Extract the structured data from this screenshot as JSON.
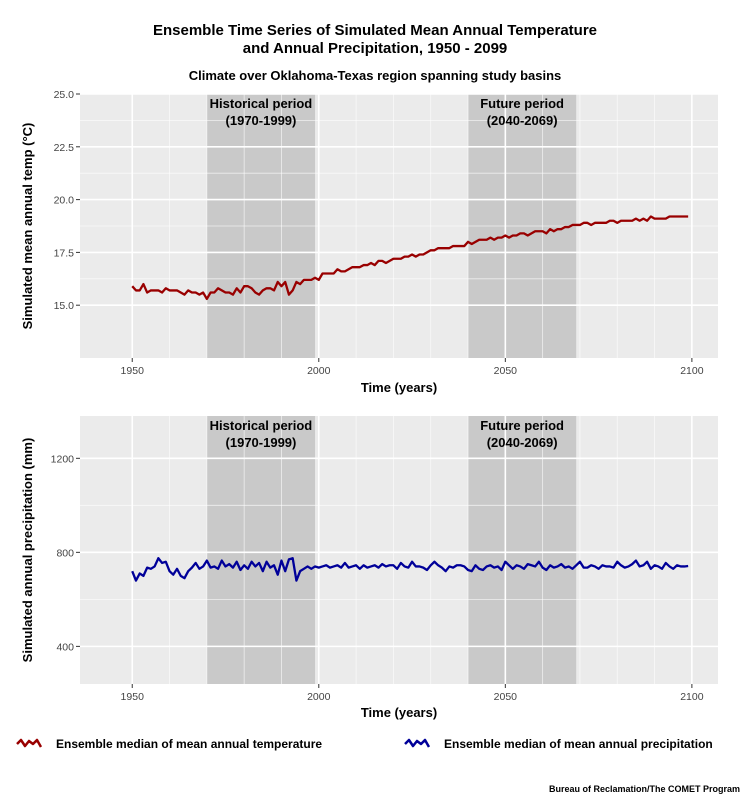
{
  "title_line1": "Ensemble Time Series of Simulated Mean Annual Temperature",
  "title_line2": "and Annual Precipitation, 1950 - 2099",
  "subtitle": "Climate over Oklahoma-Texas region spanning study basins",
  "credit": "Bureau of Reclamation/The COMET Program",
  "legend": {
    "temperature": "Ensemble median of mean annual temperature",
    "precipitation": "Ensemble median of mean annual precipitation"
  },
  "colors": {
    "temperature": "#990000",
    "precipitation": "#000099",
    "panel_bg": "#ebebeb",
    "period_shade": "#c9c9c9",
    "grid": "#ffffff"
  },
  "chart_data": [
    {
      "type": "line",
      "xlabel": "Time (years)",
      "ylabel": "Simulated mean annual temp (°C)",
      "xlim": [
        1936,
        2107
      ],
      "ylim": [
        12.5,
        25.0
      ],
      "xticks": [
        1950,
        2000,
        2050,
        2100
      ],
      "yticks": [
        15.0,
        17.5,
        20.0,
        22.5,
        25.0
      ],
      "ytick_labels": [
        "15.0",
        "17.5",
        "20.0",
        "22.5",
        "25.0"
      ],
      "grid": true,
      "shaded_periods": [
        {
          "start": 1970,
          "end": 1999,
          "label_line1": "Historical period",
          "label_line2": "(1970-1999)"
        },
        {
          "start": 2040,
          "end": 2069,
          "label_line1": "Future period",
          "label_line2": "(2040-2069)"
        }
      ],
      "x_start": 1950,
      "series": [
        {
          "values": [
            15.9,
            15.7,
            15.7,
            16.0,
            15.6,
            15.7,
            15.7,
            15.7,
            15.6,
            15.8,
            15.7,
            15.7,
            15.7,
            15.6,
            15.5,
            15.7,
            15.6,
            15.6,
            15.5,
            15.6,
            15.3,
            15.6,
            15.6,
            15.8,
            15.7,
            15.6,
            15.6,
            15.5,
            15.8,
            15.6,
            15.9,
            15.9,
            15.8,
            15.6,
            15.5,
            15.7,
            15.8,
            15.8,
            15.7,
            16.1,
            15.9,
            16.1,
            15.5,
            15.7,
            16.1,
            16.0,
            16.2,
            16.2,
            16.2,
            16.3,
            16.2,
            16.5,
            16.5,
            16.5,
            16.5,
            16.7,
            16.6,
            16.6,
            16.7,
            16.8,
            16.8,
            16.8,
            16.9,
            16.9,
            17.0,
            16.9,
            17.1,
            17.1,
            17.0,
            17.1,
            17.2,
            17.2,
            17.2,
            17.3,
            17.3,
            17.4,
            17.3,
            17.4,
            17.4,
            17.5,
            17.6,
            17.6,
            17.7,
            17.7,
            17.7,
            17.7,
            17.8,
            17.8,
            17.8,
            17.8,
            18.0,
            17.9,
            18.0,
            18.1,
            18.1,
            18.1,
            18.2,
            18.1,
            18.2,
            18.2,
            18.3,
            18.2,
            18.3,
            18.3,
            18.4,
            18.4,
            18.3,
            18.4,
            18.5,
            18.5,
            18.5,
            18.4,
            18.6,
            18.5,
            18.6,
            18.6,
            18.7,
            18.7,
            18.8,
            18.8,
            18.8,
            18.9,
            18.9,
            18.8,
            18.9,
            18.9,
            18.9,
            18.9,
            19.0,
            19.0,
            18.9,
            19.0,
            19.0,
            19.0,
            19.0,
            19.1,
            19.0,
            19.1,
            19.0,
            19.2,
            19.1,
            19.1,
            19.1,
            19.1,
            19.2,
            19.2,
            19.2,
            19.2,
            19.2,
            19.2
          ]
        }
      ]
    },
    {
      "type": "line",
      "xlabel": "Time (years)",
      "ylabel": "Simulated annual precipitation (mm)",
      "xlim": [
        1936,
        2107
      ],
      "ylim": [
        240,
        1380
      ],
      "xticks": [
        1950,
        2000,
        2050,
        2100
      ],
      "yticks": [
        400,
        800,
        1200
      ],
      "grid": true,
      "shaded_periods": [
        {
          "start": 1970,
          "end": 1999,
          "label_line1": "Historical period",
          "label_line2": "(1970-1999)"
        },
        {
          "start": 2040,
          "end": 2069,
          "label_line1": "Future period",
          "label_line2": "(2040-2069)"
        }
      ],
      "x_start": 1950,
      "series": [
        {
          "values": [
            720,
            680,
            710,
            700,
            735,
            730,
            740,
            775,
            755,
            760,
            720,
            705,
            730,
            700,
            690,
            720,
            735,
            755,
            730,
            740,
            765,
            735,
            740,
            730,
            765,
            740,
            750,
            735,
            760,
            725,
            745,
            730,
            760,
            740,
            755,
            720,
            760,
            735,
            745,
            705,
            765,
            720,
            770,
            775,
            680,
            720,
            730,
            740,
            730,
            740,
            735,
            740,
            745,
            735,
            740,
            745,
            735,
            755,
            735,
            740,
            745,
            730,
            745,
            735,
            740,
            745,
            735,
            750,
            740,
            745,
            745,
            730,
            755,
            740,
            735,
            760,
            740,
            740,
            735,
            725,
            745,
            760,
            745,
            735,
            720,
            740,
            735,
            745,
            745,
            740,
            725,
            720,
            745,
            730,
            725,
            740,
            745,
            735,
            740,
            725,
            760,
            745,
            730,
            745,
            740,
            730,
            750,
            745,
            740,
            760,
            735,
            725,
            745,
            735,
            740,
            750,
            735,
            740,
            730,
            745,
            760,
            735,
            735,
            745,
            740,
            730,
            745,
            740,
            740,
            735,
            760,
            745,
            735,
            740,
            750,
            765,
            740,
            745,
            760,
            730,
            745,
            740,
            730,
            755,
            740,
            730,
            745,
            740,
            740,
            742
          ]
        }
      ]
    }
  ]
}
